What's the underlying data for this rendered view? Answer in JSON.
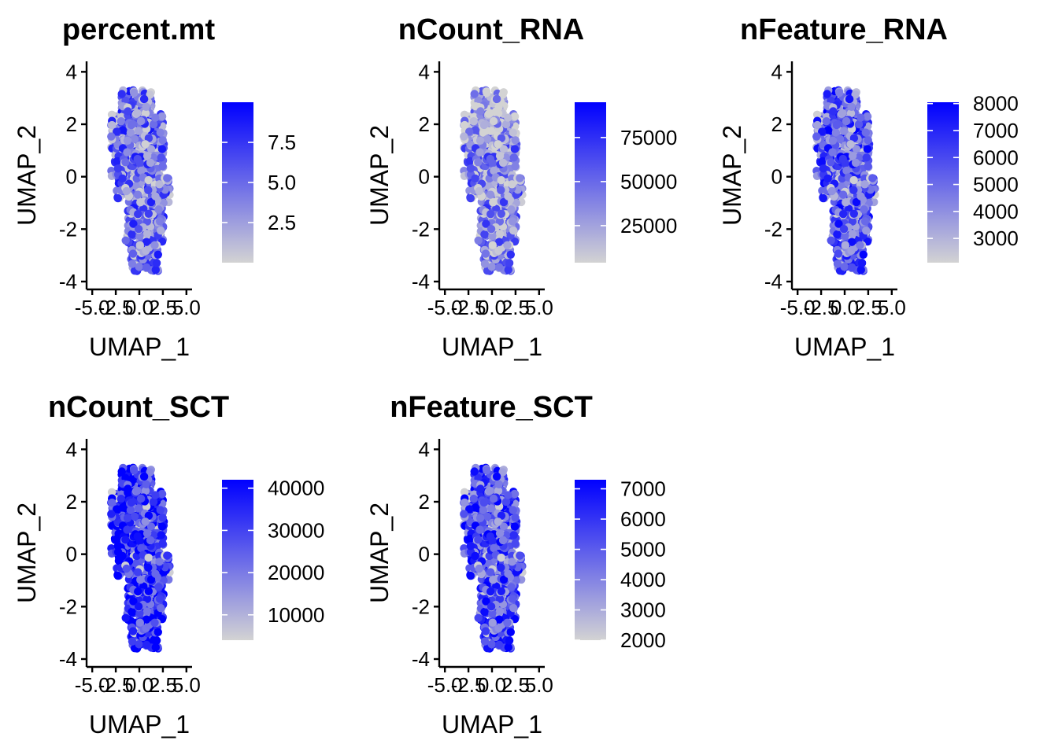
{
  "chart_data": [
    {
      "type": "scatter",
      "title": "percent.mt",
      "xlabel": "UMAP_1",
      "ylabel": "UMAP_2",
      "xlim": [
        -5.6,
        5.6
      ],
      "ylim": [
        -4.3,
        4.4
      ],
      "xticks": [
        "-5.0",
        "-2.5",
        "0.0",
        "2.5",
        "5.0"
      ],
      "yticks": [
        "4",
        "2",
        "0",
        "-2",
        "-4"
      ],
      "color_scale": {
        "low": "#d3d3d3",
        "high": "#0000ff",
        "min": 0,
        "max": 10,
        "ticks": [
          7.5,
          5.0,
          2.5
        ],
        "tick_labels": [
          "7.5",
          "5.0",
          "2.5"
        ]
      }
    },
    {
      "type": "scatter",
      "title": "nCount_RNA",
      "xlabel": "UMAP_1",
      "ylabel": "UMAP_2",
      "xlim": [
        -5.6,
        5.6
      ],
      "ylim": [
        -4.3,
        4.4
      ],
      "xticks": [
        "-5.0",
        "-2.5",
        "0.0",
        "2.5",
        "5.0"
      ],
      "yticks": [
        "4",
        "2",
        "0",
        "-2",
        "-4"
      ],
      "color_scale": {
        "low": "#d3d3d3",
        "high": "#0000ff",
        "min": 4000,
        "max": 95000,
        "ticks": [
          75000,
          50000,
          25000
        ],
        "tick_labels": [
          "75000",
          "50000",
          "25000"
        ]
      }
    },
    {
      "type": "scatter",
      "title": "nFeature_RNA",
      "xlabel": "UMAP_1",
      "ylabel": "UMAP_2",
      "xlim": [
        -5.6,
        5.6
      ],
      "ylim": [
        -4.3,
        4.4
      ],
      "xticks": [
        "-5.0",
        "-2.5",
        "0.0",
        "2.5",
        "5.0"
      ],
      "yticks": [
        "4",
        "2",
        "0",
        "-2",
        "-4"
      ],
      "color_scale": {
        "low": "#d3d3d3",
        "high": "#0000ff",
        "min": 2100,
        "max": 8050,
        "ticks": [
          8000,
          7000,
          6000,
          5000,
          4000,
          3000
        ],
        "tick_labels": [
          "8000",
          "7000",
          "6000",
          "5000",
          "4000",
          "3000"
        ]
      }
    },
    {
      "type": "scatter",
      "title": "nCount_SCT",
      "xlabel": "UMAP_1",
      "ylabel": "UMAP_2",
      "xlim": [
        -5.6,
        5.6
      ],
      "ylim": [
        -4.3,
        4.4
      ],
      "xticks": [
        "-5.0",
        "-2.5",
        "0.0",
        "2.5",
        "5.0"
      ],
      "yticks": [
        "4",
        "2",
        "0",
        "-2",
        "-4"
      ],
      "color_scale": {
        "low": "#d3d3d3",
        "high": "#0000ff",
        "min": 4000,
        "max": 42000,
        "ticks": [
          40000,
          30000,
          20000,
          10000
        ],
        "tick_labels": [
          "40000",
          "30000",
          "20000",
          "10000"
        ]
      }
    },
    {
      "type": "scatter",
      "title": "nFeature_SCT",
      "xlabel": "UMAP_1",
      "ylabel": "UMAP_2",
      "xlim": [
        -5.6,
        5.6
      ],
      "ylim": [
        -4.3,
        4.4
      ],
      "xticks": [
        "-5.0",
        "-2.5",
        "0.0",
        "2.5",
        "5.0"
      ],
      "yticks": [
        "4",
        "2",
        "0",
        "-2",
        "-4"
      ],
      "color_scale": {
        "low": "#d3d3d3",
        "high": "#0000ff",
        "min": 2000,
        "max": 7300,
        "ticks": [
          7000,
          6000,
          5000,
          4000,
          3000,
          2000
        ],
        "tick_labels": [
          "7000",
          "6000",
          "5000",
          "4000",
          "3000",
          "2000"
        ]
      }
    }
  ]
}
